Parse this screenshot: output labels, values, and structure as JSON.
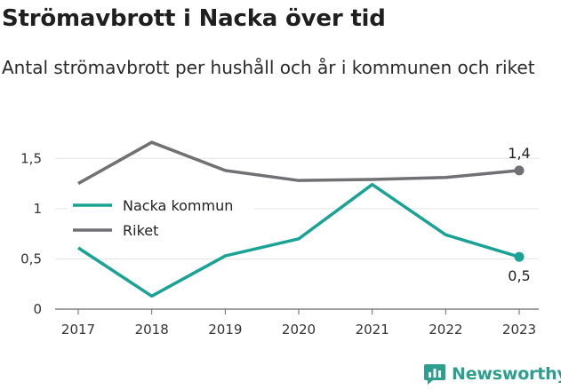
{
  "title": "Strömavbrott i Nacka över tid",
  "subtitle": "Antal strömavbrott per hushåll och år i kommunen och riket",
  "brand": {
    "name": "Newsworthy",
    "logo_icon": "chat-bubble-bar-chart-icon",
    "color": "#2e9e8f"
  },
  "chart_data": {
    "type": "line",
    "x": [
      "2017",
      "2018",
      "2019",
      "2020",
      "2021",
      "2022",
      "2023"
    ],
    "ylim": [
      0,
      1.75
    ],
    "yticks": [
      {
        "value": 0,
        "label": "0"
      },
      {
        "value": 0.5,
        "label": "0,5"
      },
      {
        "value": 1,
        "label": "1"
      },
      {
        "value": 1.5,
        "label": "1,5"
      }
    ],
    "grid": true,
    "legend_position": "top-left",
    "series": [
      {
        "name": "Nacka kommun",
        "color": "#1aa394",
        "values": [
          0.61,
          0.13,
          0.53,
          0.7,
          1.24,
          0.74,
          0.52
        ],
        "end_label": "0,5",
        "end_label_position": "below"
      },
      {
        "name": "Riket",
        "color": "#707075",
        "values": [
          1.25,
          1.66,
          1.38,
          1.28,
          1.29,
          1.31,
          1.38
        ],
        "end_label": "1,4",
        "end_label_position": "above"
      }
    ]
  }
}
